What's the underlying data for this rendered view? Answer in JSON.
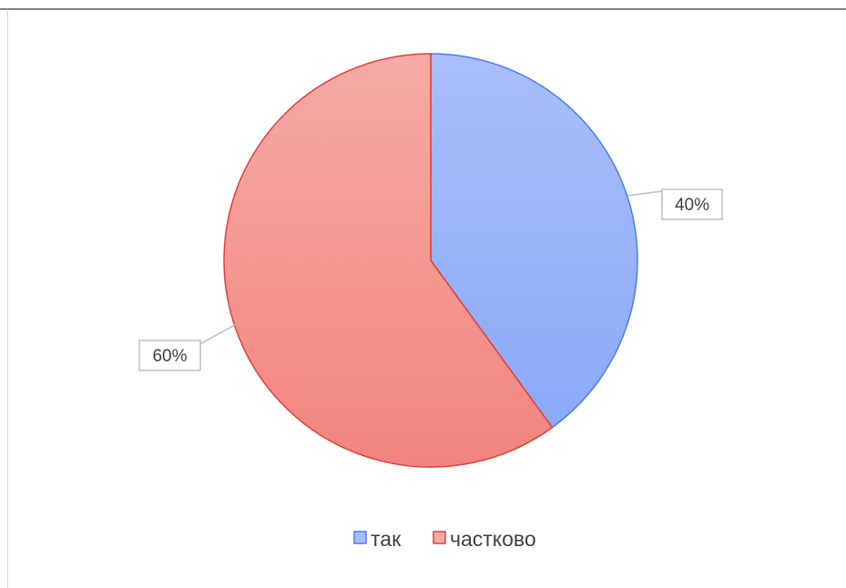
{
  "chart_data": {
    "type": "pie",
    "categories": [
      "так",
      "частково"
    ],
    "values": [
      40,
      60
    ],
    "data_labels": [
      "40%",
      "60%"
    ],
    "colors": {
      "так": {
        "fill_top": "#aabffb",
        "fill_bottom": "#8aa9f7",
        "stroke": "#4a7cf0"
      },
      "частково": {
        "fill_top": "#f6aba6",
        "fill_bottom": "#f2847e",
        "stroke": "#e0403a"
      }
    },
    "start_angle": "12 o'clock",
    "direction": "clockwise",
    "legend_position": "bottom"
  }
}
